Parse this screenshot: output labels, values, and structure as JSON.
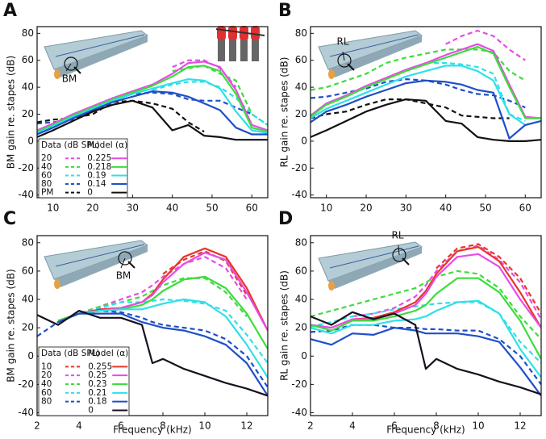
{
  "chart_data": [
    {
      "type": "line",
      "label": "A",
      "ylabel": "BM gain re. stapes (dB)",
      "inset_label": "BM",
      "legend_data_title": "Data (dB SPL)",
      "legend_model_title": "Model (α)",
      "x": [
        6,
        10,
        15,
        20,
        25,
        30,
        35,
        40,
        44,
        48,
        52,
        56,
        60,
        64
      ],
      "xlim": [
        6,
        64
      ],
      "ylim": [
        -42,
        85
      ],
      "xticks": [
        10,
        20,
        30,
        40,
        50,
        60
      ],
      "yticks": [
        -40,
        -20,
        0,
        20,
        40,
        60,
        80
      ],
      "series": [
        {
          "name": "20",
          "color": "#e64ce6",
          "dashed": true,
          "values": [
            null,
            null,
            null,
            null,
            null,
            null,
            null,
            55,
            60,
            60,
            54,
            40,
            null,
            null
          ]
        },
        {
          "name": "40",
          "color": "#3ddc3d",
          "dashed": true,
          "values": [
            null,
            null,
            null,
            null,
            null,
            null,
            null,
            52,
            54,
            56,
            50,
            45,
            20,
            12
          ]
        },
        {
          "name": "60",
          "color": "#2ee0e8",
          "dashed": true,
          "values": [
            null,
            null,
            null,
            null,
            null,
            null,
            38,
            42,
            44,
            44,
            40,
            32,
            20,
            12
          ]
        },
        {
          "name": "80",
          "color": "#1f4fc8",
          "dashed": true,
          "values": [
            13,
            14,
            16,
            22,
            31,
            35,
            36,
            35,
            31,
            30,
            30,
            25,
            20,
            null
          ]
        },
        {
          "name": "PM",
          "color": "#111111",
          "dashed": true,
          "values": [
            14,
            16,
            17,
            20,
            29,
            30,
            28,
            24,
            14,
            7,
            null,
            null,
            null,
            null
          ]
        },
        {
          "name": "0.225",
          "color": "#e64ce6",
          "dashed": false,
          "values": [
            8,
            13,
            20,
            26,
            32,
            37,
            42,
            50,
            58,
            59,
            55,
            38,
            12,
            8
          ]
        },
        {
          "name": "0.218",
          "color": "#3ddc3d",
          "dashed": false,
          "values": [
            7,
            12,
            19,
            25,
            31,
            36,
            41,
            48,
            55,
            56,
            52,
            35,
            10,
            7
          ]
        },
        {
          "name": "0.19",
          "color": "#2ee0e8",
          "dashed": false,
          "values": [
            6,
            11,
            18,
            24,
            30,
            35,
            39,
            43,
            46,
            45,
            39,
            22,
            8,
            6
          ]
        },
        {
          "name": "0.14",
          "color": "#1f4fc8",
          "dashed": false,
          "values": [
            5,
            10,
            17,
            23,
            29,
            33,
            37,
            36,
            33,
            28,
            23,
            10,
            5,
            5
          ]
        },
        {
          "name": "0",
          "color": "#111111",
          "dashed": false,
          "values": [
            3,
            8,
            15,
            22,
            27,
            30,
            25,
            8,
            12,
            4,
            3,
            1,
            1,
            1
          ]
        }
      ]
    },
    {
      "type": "line",
      "label": "B",
      "ylabel": "RL gain re. stapes (dB)",
      "inset_label": "RL",
      "x": [
        6,
        10,
        15,
        20,
        25,
        30,
        35,
        40,
        44,
        48,
        52,
        56,
        60,
        64
      ],
      "xlim": [
        6,
        64
      ],
      "ylim": [
        -42,
        85
      ],
      "xticks": [
        10,
        20,
        30,
        40,
        50,
        60
      ],
      "yticks": [
        -40,
        -20,
        0,
        20,
        40,
        60,
        80
      ],
      "series": [
        {
          "color": "#e64ce6",
          "dashed": true,
          "values": [
            null,
            null,
            null,
            null,
            null,
            null,
            null,
            72,
            78,
            82,
            78,
            68,
            60,
            null
          ]
        },
        {
          "color": "#3ddc3d",
          "dashed": true,
          "values": [
            38,
            40,
            45,
            50,
            58,
            62,
            65,
            68,
            68,
            68,
            66,
            52,
            45,
            null
          ]
        },
        {
          "color": "#2ee0e8",
          "dashed": true,
          "values": [
            null,
            null,
            null,
            null,
            null,
            null,
            58,
            58,
            57,
            55,
            50,
            20,
            15,
            null
          ]
        },
        {
          "color": "#1f4fc8",
          "dashed": true,
          "values": [
            32,
            33,
            36,
            39,
            44,
            46,
            45,
            42,
            38,
            35,
            34,
            30,
            25,
            null
          ]
        },
        {
          "color": "#111111",
          "dashed": true,
          "values": [
            17,
            20,
            22,
            27,
            31,
            31,
            28,
            25,
            19,
            18,
            17,
            17,
            null,
            null
          ]
        },
        {
          "color": "#e64ce6",
          "dashed": false,
          "values": [
            19,
            28,
            34,
            41,
            47,
            53,
            58,
            64,
            68,
            72,
            67,
            42,
            18,
            17
          ]
        },
        {
          "color": "#3ddc3d",
          "dashed": false,
          "values": [
            18,
            27,
            33,
            40,
            46,
            52,
            57,
            62,
            66,
            70,
            65,
            40,
            17,
            17
          ]
        },
        {
          "color": "#2ee0e8",
          "dashed": false,
          "values": [
            17,
            24,
            30,
            36,
            42,
            48,
            52,
            56,
            56,
            52,
            45,
            20,
            12,
            15
          ]
        },
        {
          "color": "#1f4fc8",
          "dashed": false,
          "values": [
            14,
            22,
            27,
            33,
            38,
            43,
            45,
            44,
            42,
            38,
            36,
            2,
            12,
            15
          ]
        },
        {
          "color": "#111111",
          "dashed": false,
          "values": [
            3,
            8,
            15,
            22,
            27,
            31,
            30,
            15,
            13,
            3,
            1,
            0,
            0,
            1
          ]
        }
      ]
    },
    {
      "type": "line",
      "label": "C",
      "ylabel": "BM gain re. stapes (dB)",
      "xlabel": "Frequency (kHz)",
      "inset_label": "BM",
      "legend_data_title": "Data (dB SPL)",
      "legend_model_title": "Model (α)",
      "x": [
        2,
        3,
        4,
        5,
        6,
        7,
        7.5,
        8,
        9,
        10,
        11,
        12,
        13
      ],
      "xlim": [
        2,
        13
      ],
      "ylim": [
        -42,
        85
      ],
      "xticks": [
        2,
        4,
        6,
        8,
        10,
        12
      ],
      "yticks": [
        -40,
        -20,
        0,
        20,
        40,
        60,
        80
      ],
      "series": [
        {
          "name": "10",
          "color": "#e8362a",
          "dashed": true,
          "values": [
            null,
            null,
            null,
            null,
            null,
            null,
            null,
            58,
            68,
            74,
            67,
            43,
            null
          ]
        },
        {
          "name": "20",
          "color": "#e64ce6",
          "dashed": true,
          "values": [
            null,
            24,
            30,
            35,
            40,
            45,
            50,
            56,
            65,
            70,
            62,
            40,
            null
          ]
        },
        {
          "name": "40",
          "color": "#3ddc3d",
          "dashed": true,
          "values": [
            null,
            24,
            30,
            35,
            38,
            42,
            46,
            50,
            55,
            55,
            45,
            28,
            null
          ]
        },
        {
          "name": "60",
          "color": "#2ee0e8",
          "dashed": true,
          "values": [
            null,
            24,
            30,
            34,
            38,
            38,
            39,
            40,
            39,
            37,
            32,
            15,
            -5
          ]
        },
        {
          "name": "80",
          "color": "#1f4fc8",
          "dashed": true,
          "values": [
            14,
            24,
            30,
            32,
            31,
            27,
            24,
            22,
            20,
            18,
            12,
            0,
            -22
          ]
        },
        {
          "name": "0.255",
          "color": "#e8362a",
          "dashed": false,
          "values": [
            null,
            25,
            30,
            33,
            34,
            38,
            44,
            54,
            70,
            76,
            70,
            48,
            18
          ]
        },
        {
          "name": "0.25",
          "color": "#e64ce6",
          "dashed": false,
          "values": [
            null,
            25,
            30,
            32,
            34,
            38,
            43,
            52,
            65,
            73,
            68,
            45,
            18
          ]
        },
        {
          "name": "0.23",
          "color": "#3ddc3d",
          "dashed": false,
          "values": [
            null,
            25,
            30,
            32,
            33,
            36,
            40,
            46,
            54,
            56,
            48,
            30,
            5
          ]
        },
        {
          "name": "0.21",
          "color": "#2ee0e8",
          "dashed": false,
          "values": [
            null,
            24,
            30,
            32,
            33,
            33,
            35,
            37,
            40,
            38,
            28,
            8,
            -15
          ]
        },
        {
          "name": "0.18",
          "color": "#1f4fc8",
          "dashed": false,
          "values": [
            null,
            24,
            30,
            30,
            30,
            24,
            22,
            20,
            18,
            14,
            8,
            -5,
            -28
          ]
        },
        {
          "name": "0",
          "color": "#1a0f1f",
          "dashed": false,
          "values": [
            29,
            22,
            32,
            27,
            27,
            22,
            -5,
            -2,
            -9,
            -14,
            -19,
            -23,
            -28
          ]
        }
      ]
    },
    {
      "type": "line",
      "label": "D",
      "ylabel": "RL gain re. stapes (dB)",
      "xlabel": "Frequency (kHz)",
      "inset_label": "RL",
      "x": [
        2,
        3,
        4,
        5,
        6,
        7,
        7.5,
        8,
        9,
        10,
        11,
        12,
        13
      ],
      "xlim": [
        2,
        13
      ],
      "ylim": [
        -42,
        85
      ],
      "xticks": [
        2,
        4,
        6,
        8,
        10,
        12
      ],
      "yticks": [
        -40,
        -20,
        0,
        20,
        40,
        60,
        80
      ],
      "series": [
        {
          "color": "#e8362a",
          "dashed": true,
          "values": [
            null,
            null,
            null,
            null,
            null,
            null,
            null,
            62,
            76,
            79,
            70,
            55,
            30
          ]
        },
        {
          "color": "#e64ce6",
          "dashed": true,
          "values": [
            null,
            null,
            28,
            30,
            34,
            42,
            50,
            60,
            74,
            78,
            68,
            52,
            26
          ]
        },
        {
          "color": "#3ddc3d",
          "dashed": true,
          "values": [
            28,
            32,
            36,
            40,
            44,
            48,
            52,
            56,
            60,
            58,
            48,
            28,
            12
          ]
        },
        {
          "color": "#2ee0e8",
          "dashed": true,
          "values": [
            21,
            24,
            28,
            30,
            33,
            35,
            36,
            37,
            38,
            38,
            30,
            10,
            -5
          ]
        },
        {
          "color": "#1f4fc8",
          "dashed": true,
          "values": [
            17,
            18,
            22,
            22,
            20,
            20,
            19,
            19,
            18,
            18,
            12,
            0,
            -20
          ]
        },
        {
          "color": "#e8362a",
          "dashed": false,
          "values": [
            22,
            20,
            26,
            27,
            31,
            38,
            46,
            58,
            74,
            77,
            67,
            45,
            20
          ]
        },
        {
          "color": "#e64ce6",
          "dashed": false,
          "values": [
            22,
            20,
            26,
            26,
            30,
            36,
            44,
            56,
            70,
            72,
            63,
            40,
            20
          ]
        },
        {
          "color": "#3ddc3d",
          "dashed": false,
          "values": [
            22,
            18,
            25,
            25,
            28,
            32,
            36,
            44,
            55,
            55,
            45,
            25,
            -2
          ]
        },
        {
          "color": "#2ee0e8",
          "dashed": false,
          "values": [
            20,
            16,
            22,
            22,
            25,
            26,
            28,
            32,
            38,
            39,
            30,
            5,
            -15
          ]
        },
        {
          "color": "#1f4fc8",
          "dashed": false,
          "values": [
            12,
            8,
            16,
            15,
            20,
            18,
            16,
            16,
            16,
            14,
            10,
            -8,
            -28
          ]
        },
        {
          "color": "#1a0f1f",
          "dashed": false,
          "values": [
            28,
            22,
            31,
            26,
            30,
            22,
            -9,
            -2,
            -9,
            -13,
            -18,
            -22,
            -27
          ]
        }
      ]
    }
  ]
}
